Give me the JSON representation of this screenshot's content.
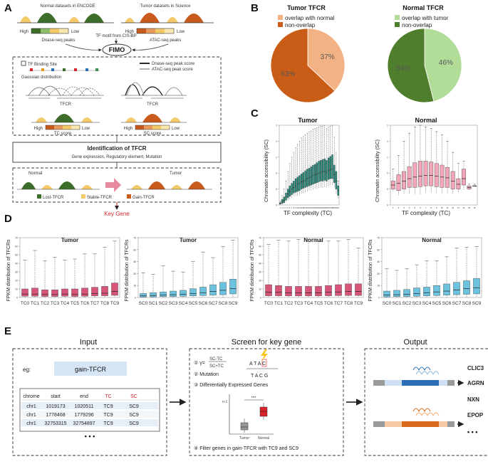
{
  "panel_letters": [
    "A",
    "B",
    "C",
    "D",
    "E"
  ],
  "panelA": {
    "normal_label": "Normal datasets in ENCODE",
    "tumor_label": "Tumor datasets in Science",
    "high": "High",
    "low": "Low",
    "dnase_peaks": "Dnase-seq peaks",
    "tf_motif": "TF motif from CIS-BP",
    "atac_peaks": "ATAC-seq peaks",
    "fimo": "FIMO",
    "tf_binding_site": "TF Binding Site",
    "gaussian": "Gaussian distribution",
    "dnase_score": "Dnase-seq peak score",
    "atac_score": "ATAC-seq peak score",
    "tfcr": "TFCR",
    "tc_score": "TC score",
    "sc_score": "SC score",
    "identification_title": "Identification of TFCR",
    "identification_sub": "Gene expression, Regulatory element, Mutation",
    "normal": "Normal",
    "tumor": "Tumor",
    "lost": "Lost-TFCR",
    "stable": "Stable-TFCR",
    "gain": "Gain-TFCR",
    "key_gene": "Key Gene",
    "colors": {
      "green": "#3c6e2a",
      "orange": "#c85a1e",
      "yellow": "#f3c96a",
      "red": "#d9232a"
    }
  },
  "panelB": {
    "tumor": {
      "title": "Tumor TFCR",
      "legend": [
        "overlap with normal",
        "non-overlap"
      ],
      "colors": [
        "#f2b283",
        "#c95d17"
      ]
    },
    "normal": {
      "title": "Normal TFCR",
      "legend": [
        "overlap with tumor",
        "non-overlap"
      ],
      "colors": [
        "#b2dd98",
        "#4f7f2d"
      ]
    }
  },
  "panelC": {
    "tumor_title": "Tumor",
    "normal_title": "Normal",
    "ylabel": "Chromatin accessibility (SC)",
    "xlabel": "TF complexity (TC)"
  },
  "panelD": {
    "ylabel": "FPKM distribution of TFCRs",
    "plots": [
      {
        "title": "Tumor",
        "kind": "TC"
      },
      {
        "title": "Tumor",
        "kind": "SC"
      },
      {
        "title": "Normal",
        "kind": "TC"
      },
      {
        "title": "Normal",
        "kind": "SC"
      }
    ]
  },
  "panelE": {
    "input_title": "Input",
    "screen_title": "Screen for key gene",
    "output_title": "Output",
    "eg": "eg:",
    "gain_tfcr": "gain-TFCR",
    "table_headers": [
      "chrome",
      "start",
      "end",
      "TC",
      "SC"
    ],
    "table_rows": [
      [
        "chr1",
        "1019173",
        "1020511",
        "TC9",
        "SC9"
      ],
      [
        "chr1",
        "1778468",
        "1779296",
        "TC9",
        "SC9"
      ],
      [
        "chr1",
        "32753315",
        "32754897",
        "TC9",
        "SC9"
      ]
    ],
    "ellipsis": "• • •",
    "step1": "① γ=",
    "frac_num": "SC-TC",
    "frac_den": "SC+TC",
    "step2": "② Mutation",
    "seq_top": "A T A C",
    "seq_bottom": "T A C G",
    "step3": "③ Differentially Expressed Genes",
    "step4": "④ Filter genes in gain-TFCR with TC9 and SC9",
    "mini_x": [
      "Tumor",
      "Normal"
    ],
    "mini_sig": "***",
    "mini_n": "n-1",
    "genes": [
      "CLIC3",
      "AGRN",
      "NXN",
      "EPOP"
    ],
    "genes_more": "• • •"
  },
  "chart_data": [
    {
      "type": "pie",
      "title": "Tumor TFCR",
      "labels": [
        "overlap with normal",
        "non-overlap"
      ],
      "values": [
        37,
        63
      ],
      "label_text": [
        "37%",
        "63%"
      ]
    },
    {
      "type": "pie",
      "title": "Normal TFCR",
      "labels": [
        "overlap with tumor",
        "non-overlap"
      ],
      "values": [
        46,
        54
      ],
      "label_text": [
        "46%",
        "54%"
      ]
    },
    {
      "type": "box",
      "title": "Tumor",
      "xlabel": "TF complexity (TC)",
      "ylabel": "Chromatin accessibility (SC)",
      "color": "#1d8a7a",
      "categories": [
        "1",
        "2",
        "3",
        "4",
        "5",
        "6",
        "7",
        "8",
        "9",
        "10",
        "11",
        "12",
        "13",
        "14",
        "15",
        "16",
        "17",
        "18",
        "19",
        "20",
        "21",
        "22",
        "23",
        "24",
        "25",
        "26",
        "27",
        "28",
        "29",
        "30",
        "31"
      ],
      "medians": [
        0.02,
        0.04,
        0.06,
        0.1,
        0.14,
        0.17,
        0.2,
        0.22,
        0.24,
        0.26,
        0.27,
        0.29,
        0.3,
        0.31,
        0.33,
        0.34,
        0.35,
        0.37,
        0.38,
        0.39,
        0.4,
        0.41,
        0.42,
        0.42,
        0.41,
        0.43,
        0.44,
        0.45,
        0.38,
        0.3,
        0.18
      ],
      "q1": [
        0.01,
        0.02,
        0.03,
        0.06,
        0.09,
        0.11,
        0.13,
        0.15,
        0.16,
        0.17,
        0.18,
        0.2,
        0.21,
        0.22,
        0.23,
        0.24,
        0.25,
        0.26,
        0.27,
        0.28,
        0.29,
        0.3,
        0.3,
        0.31,
        0.3,
        0.32,
        0.33,
        0.33,
        0.28,
        0.2,
        0.12
      ],
      "q3": [
        0.03,
        0.07,
        0.1,
        0.15,
        0.2,
        0.24,
        0.27,
        0.3,
        0.33,
        0.35,
        0.37,
        0.39,
        0.41,
        0.43,
        0.45,
        0.46,
        0.48,
        0.5,
        0.51,
        0.53,
        0.55,
        0.56,
        0.57,
        0.58,
        0.56,
        0.59,
        0.61,
        0.63,
        0.5,
        0.42,
        0.24
      ],
      "whisker_high": [
        0.05,
        0.12,
        0.2,
        0.3,
        0.42,
        0.52,
        0.6,
        0.66,
        0.72,
        0.76,
        0.8,
        0.84,
        0.86,
        0.88,
        0.9,
        0.92,
        0.93,
        0.95,
        0.96,
        0.97,
        0.98,
        0.99,
        0.99,
        1.0,
        0.96,
        0.98,
        0.99,
        1.0,
        0.85,
        0.66,
        0.3
      ]
    },
    {
      "type": "box",
      "title": "Normal",
      "xlabel": "TF complexity (TC)",
      "ylabel": "Chromatin accessibility (SC)",
      "color": "#f2a6b8",
      "categories": [
        "1",
        "2",
        "3",
        "4",
        "5",
        "6",
        "7",
        "8",
        "9",
        "10",
        "11",
        "12",
        "13",
        "14",
        "15",
        "16"
      ],
      "medians": [
        0.25,
        0.27,
        0.3,
        0.33,
        0.35,
        0.36,
        0.37,
        0.37,
        0.36,
        0.35,
        0.34,
        0.3,
        0.26,
        0.33,
        0.22,
        0.24
      ],
      "q1": [
        0.2,
        0.18,
        0.2,
        0.22,
        0.22,
        0.23,
        0.24,
        0.24,
        0.23,
        0.22,
        0.22,
        0.2,
        0.2,
        0.25,
        0.2,
        0.24
      ],
      "q3": [
        0.3,
        0.38,
        0.42,
        0.48,
        0.53,
        0.55,
        0.55,
        0.54,
        0.52,
        0.5,
        0.47,
        0.42,
        0.33,
        0.45,
        0.24,
        0.24
      ],
      "whisker_high": [
        0.45,
        0.62,
        0.8,
        0.9,
        0.98,
        1.0,
        0.98,
        0.96,
        0.92,
        0.88,
        0.8,
        0.66,
        0.52,
        0.55,
        0.26,
        0.26
      ]
    },
    {
      "type": "box",
      "title": "Tumor",
      "ylabel": "FPKM distribution of TFCRs",
      "color": "#d8557a",
      "categories": [
        "TC0",
        "TC1",
        "TC2",
        "TC3",
        "TC4",
        "TC5",
        "TC6",
        "TC7",
        "TC8",
        "TC9"
      ],
      "medians": [
        4,
        4,
        3.5,
        3.5,
        4,
        3.5,
        4,
        4.5,
        5,
        7
      ],
      "q1": [
        1.5,
        1.5,
        1.2,
        1.2,
        1.5,
        1.2,
        1.5,
        1.8,
        2,
        2.5
      ],
      "q3": [
        10,
        11,
        9,
        9,
        10,
        10,
        11,
        12,
        13,
        17
      ],
      "whisker_high": [
        44,
        55,
        43,
        47,
        44,
        45,
        51,
        51,
        59,
        66
      ],
      "ylim": [
        0,
        70
      ]
    },
    {
      "type": "box",
      "title": "Tumor",
      "ylabel": "FPKM distribution of TFCRs",
      "color": "#6cc3df",
      "categories": [
        "SC0",
        "SC1",
        "SC2",
        "SC3",
        "SC4",
        "SC5",
        "SC6",
        "SC7",
        "SC8",
        "SC9"
      ],
      "medians": [
        2,
        2.5,
        3,
        3.5,
        4,
        5,
        6,
        7.5,
        9,
        11
      ],
      "q1": [
        0.5,
        0.8,
        1,
        1.2,
        1.5,
        2,
        2.5,
        3,
        3.5,
        4.5
      ],
      "q3": [
        5,
        6,
        7,
        8,
        9,
        11,
        13,
        16,
        19,
        23
      ],
      "whisker_high": [
        31,
        29,
        40,
        33,
        32,
        45,
        57,
        50,
        64,
        72
      ],
      "ylim": [
        0,
        75
      ]
    },
    {
      "type": "box",
      "title": "Normal",
      "ylabel": "FPKM distribution of TFCRs",
      "color": "#d8557a",
      "categories": [
        "TC0",
        "TC1",
        "TC2",
        "TC3",
        "TC4",
        "TC5",
        "TC6",
        "TC7",
        "TC8",
        "TC9"
      ],
      "medians": [
        6,
        6,
        5.5,
        5.5,
        5.5,
        5.5,
        6,
        6.5,
        7,
        7
      ],
      "q1": [
        2,
        2,
        1.8,
        1.8,
        1.8,
        1.8,
        2,
        2.2,
        2.4,
        2.4
      ],
      "q3": [
        15,
        14,
        13,
        13,
        13,
        13,
        14,
        15,
        16,
        16
      ],
      "whisker_high": [
        62,
        67,
        66,
        68,
        68,
        66,
        66,
        66,
        68,
        58
      ],
      "ylim": [
        0,
        70
      ]
    },
    {
      "type": "box",
      "title": "Normal",
      "ylabel": "FPKM distribution of TFCRs",
      "color": "#6cc3df",
      "categories": [
        "SC0",
        "SC1",
        "SC2",
        "SC3",
        "SC4",
        "SC5",
        "SC6",
        "SC7",
        "SC8",
        "SC9"
      ],
      "medians": [
        3,
        3.5,
        4,
        5,
        6,
        7,
        8,
        9.5,
        11,
        12
      ],
      "q1": [
        0.8,
        1,
        1.2,
        1.5,
        2,
        2.5,
        3,
        3.5,
        4,
        4.5
      ],
      "q3": [
        8,
        9,
        10,
        12,
        13,
        15,
        17,
        19,
        21,
        24
      ],
      "whisker_high": [
        36,
        34,
        36,
        41,
        46,
        46,
        51,
        62,
        63,
        64
      ],
      "ylim": [
        0,
        75
      ]
    }
  ]
}
